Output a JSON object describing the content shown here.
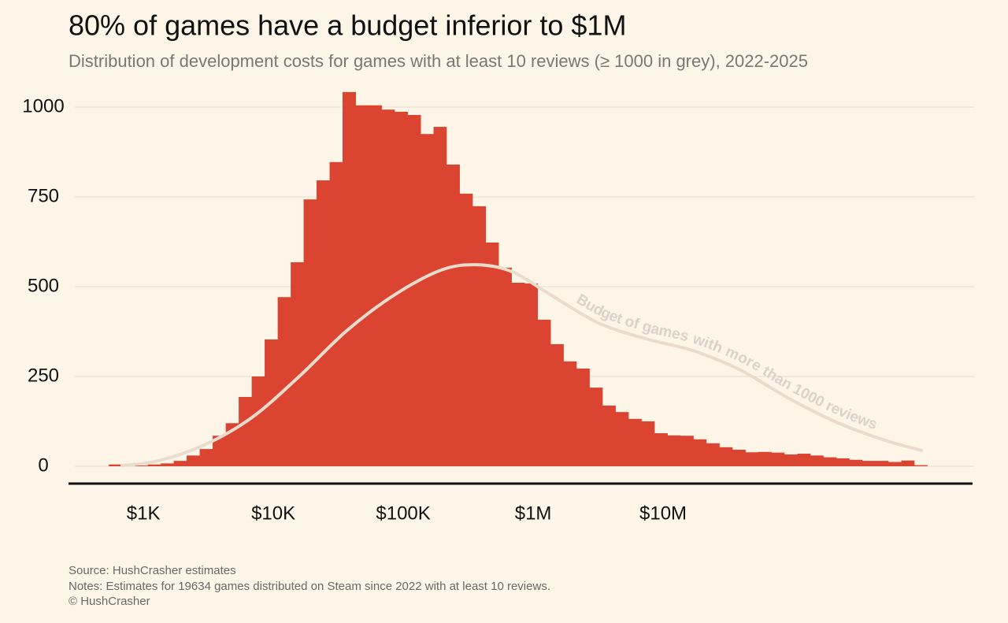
{
  "chart_data": {
    "type": "histogram",
    "title": "80% of games have a budget inferior to $1M",
    "subtitle": "Distribution of development costs for games with at least 10 reviews (≥ 1000 in grey), 2022-2025",
    "xscale": "log",
    "xlim": [
      265,
      2410000000
    ],
    "xticks": [
      {
        "value": 1000,
        "label": "$1K"
      },
      {
        "value": 10000,
        "label": "$10K"
      },
      {
        "value": 100000,
        "label": "$100K"
      },
      {
        "value": 1000000,
        "label": "$1M"
      },
      {
        "value": 10000000,
        "label": "$10M"
      }
    ],
    "ylim": [
      0,
      1046
    ],
    "yticks": [
      0,
      250,
      500,
      750,
      1000
    ],
    "grid": true,
    "color": "#da4430",
    "bins": [
      541,
      681,
      857,
      1080,
      1360,
      1710,
      2150,
      2710,
      3410,
      4300,
      5410,
      6810,
      8570,
      10800,
      13600,
      17100,
      21500,
      27100,
      34100,
      43000,
      54100,
      68100,
      85700,
      108000,
      136000,
      171000,
      215000,
      271000,
      341000,
      430000,
      541000,
      681000,
      857000,
      1080000,
      1360000,
      1710000,
      2150000,
      2710000,
      3410000,
      4300000,
      5410000,
      6810000,
      8570000,
      10800000,
      13600000,
      17100000,
      21500000,
      27100000,
      34100000,
      43000000,
      54100000,
      68100000,
      85700000,
      108000000,
      136000000,
      171000000,
      215000000,
      271000000,
      341000000,
      430000000,
      541000000,
      681000000,
      857000000,
      1080000000
    ],
    "counts": [
      5,
      0,
      2,
      5,
      8,
      15,
      30,
      48,
      85,
      120,
      193,
      250,
      353,
      471,
      568,
      743,
      796,
      847,
      1042,
      1005,
      1005,
      993,
      987,
      978,
      925,
      945,
      840,
      759,
      724,
      623,
      553,
      511,
      509,
      408,
      340,
      292,
      272,
      219,
      169,
      151,
      132,
      125,
      92,
      86,
      85,
      75,
      64,
      53,
      46,
      39,
      40,
      38,
      33,
      35,
      30,
      25,
      22,
      18,
      15,
      15,
      12,
      16,
      3
    ],
    "overlay": {
      "name": "Budget of games with more than 1000 reviews",
      "color": "#e9dccd",
      "label_color": "#dcd2c7",
      "x": [
        685,
        1290,
        2970,
        6850,
        15800,
        36600,
        84600,
        195000,
        366000,
        686000,
        1380000,
        3180000,
        7360000,
        17000000,
        39300000,
        90800000,
        209000000,
        484000000,
        973000000
      ],
      "values": [
        2,
        15,
        60,
        136,
        250,
        377,
        476,
        546,
        561,
        542,
        476,
        399,
        355,
        322,
        268,
        191,
        125,
        75,
        44
      ]
    },
    "source": "Source: HushCrasher estimates",
    "notes": "Notes: Estimates for 19634 games distributed on Steam since 2022 with at least 10 reviews.",
    "copyright": "© HushCrasher"
  }
}
